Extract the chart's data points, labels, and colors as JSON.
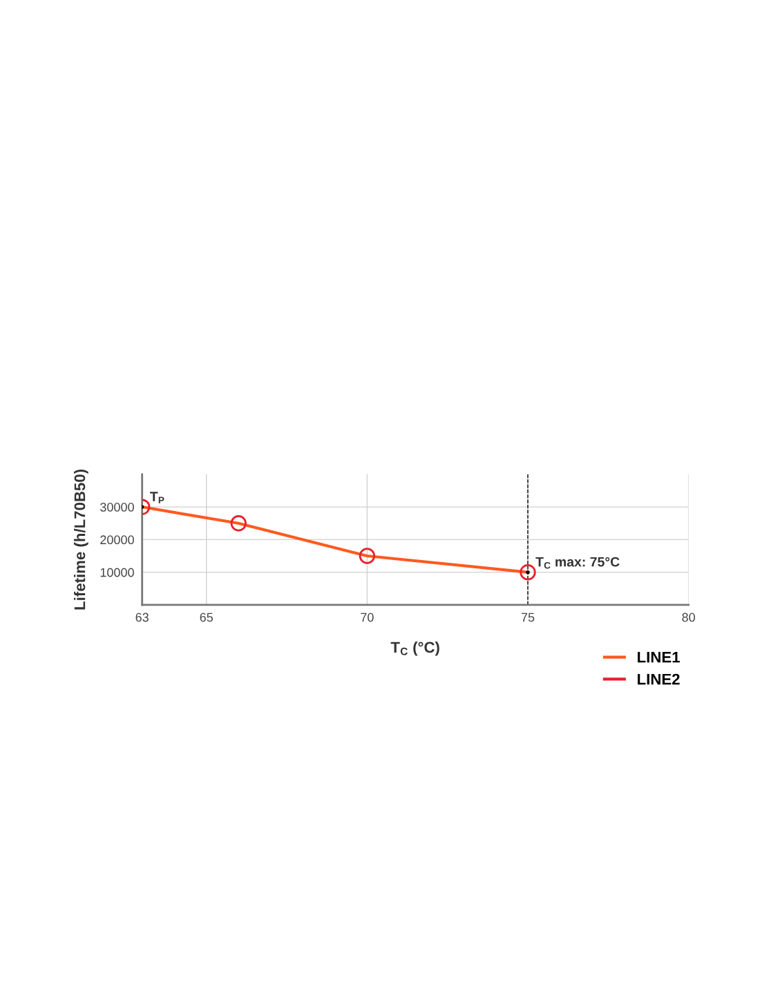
{
  "chart_data": {
    "type": "line",
    "xlabel": "T$_{C}$ (°C)",
    "ylabel": "Lifetime (h/L70B50)",
    "series": [
      {
        "name": "LINE1",
        "color": "#ff5a1f",
        "x": [
          63,
          66,
          70,
          75
        ],
        "values": [
          30000,
          25000,
          15000,
          10000
        ],
        "marker": "none"
      },
      {
        "name": "LINE2",
        "type": "scatter",
        "color": "#e8202a",
        "x": [
          63,
          66,
          70,
          75
        ],
        "values": [
          30000,
          25000,
          15000,
          10000
        ],
        "marker": "circle"
      }
    ],
    "annotations": [
      {
        "text": "T$_{P}$",
        "x": 63,
        "y": 30000
      },
      {
        "text": "T$_{C}$ max: 75°C",
        "x": 75,
        "y": 10000
      }
    ],
    "ref_lines": [
      {
        "axis": "x",
        "value": 75,
        "color": "#000000",
        "line_style": "dashed"
      }
    ],
    "xlim": [
      63,
      80
    ],
    "xticks": [
      63,
      65,
      70,
      75,
      80
    ],
    "ylim": [
      0,
      40000
    ],
    "yticks": [
      10000,
      20000,
      30000
    ],
    "grid": true,
    "legend": "bottom right"
  }
}
